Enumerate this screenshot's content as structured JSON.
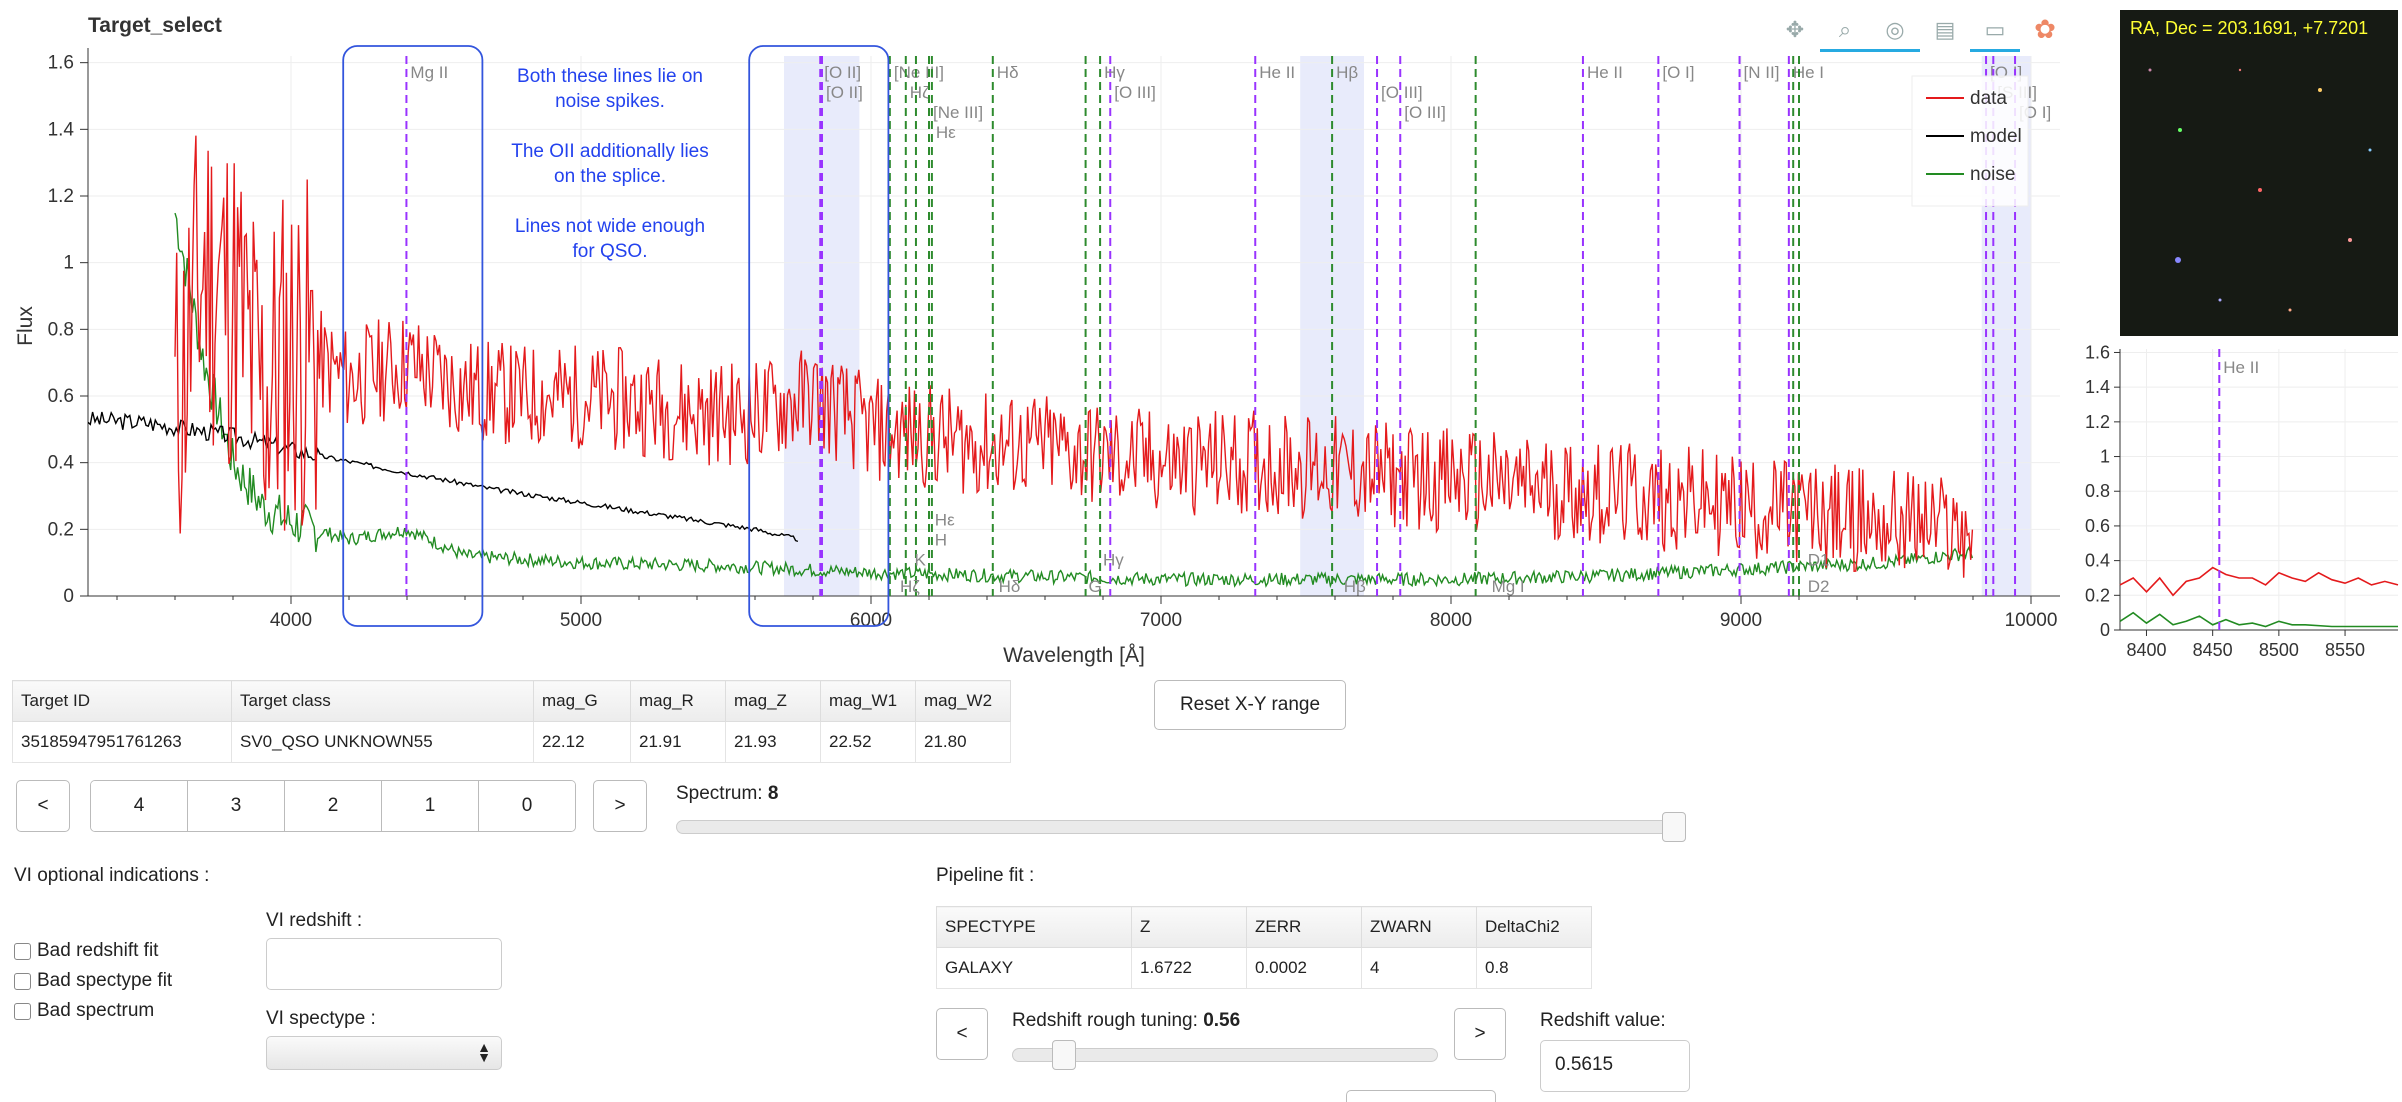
{
  "app": {
    "title": "Target_select"
  },
  "toolbar": {
    "icons": [
      "pan-icon",
      "box-zoom-icon",
      "wheel-zoom-icon",
      "save-icon",
      "hover-icon",
      "bokeh-logo-icon"
    ]
  },
  "main_chart": {
    "chart_data": {
      "type": "line",
      "xlabel": "Wavelength [Å]",
      "ylabel": "Flux",
      "xlim": [
        3300,
        10100
      ],
      "ylim": [
        0,
        1.62
      ],
      "x_ticks": [
        "4000",
        "5000",
        "6000",
        "7000",
        "8000",
        "9000",
        "10000"
      ],
      "y_ticks": [
        "0",
        "0.2",
        "0.4",
        "0.6",
        "0.8",
        "1",
        "1.2",
        "1.4",
        "1.6"
      ],
      "grid": true,
      "legend": {
        "placement": "top-right",
        "items": [
          {
            "name": "data",
            "color": "#e41a1c"
          },
          {
            "name": "model",
            "color": "#000000"
          },
          {
            "name": "noise",
            "color": "#228b22"
          }
        ]
      },
      "series": [
        {
          "name": "data",
          "color": "#e41a1c",
          "approx_points": [
            [
              3600,
              0.55
            ],
            [
              3700,
              1.0
            ],
            [
              3800,
              0.9
            ],
            [
              3900,
              0.6
            ],
            [
              4000,
              0.75
            ],
            [
              4200,
              0.65
            ],
            [
              4400,
              0.7
            ],
            [
              4600,
              0.62
            ],
            [
              4800,
              0.6
            ],
            [
              5000,
              0.6
            ],
            [
              5200,
              0.58
            ],
            [
              5400,
              0.55
            ],
            [
              5600,
              0.55
            ],
            [
              5800,
              0.6
            ],
            [
              6000,
              0.5
            ],
            [
              6200,
              0.48
            ],
            [
              6400,
              0.45
            ],
            [
              6600,
              0.45
            ],
            [
              6800,
              0.42
            ],
            [
              7000,
              0.4
            ],
            [
              7200,
              0.4
            ],
            [
              7400,
              0.4
            ],
            [
              7600,
              0.38
            ],
            [
              7800,
              0.36
            ],
            [
              8000,
              0.35
            ],
            [
              8200,
              0.33
            ],
            [
              8400,
              0.32
            ],
            [
              8600,
              0.3
            ],
            [
              8800,
              0.29
            ],
            [
              9000,
              0.27
            ],
            [
              9200,
              0.25
            ],
            [
              9400,
              0.23
            ],
            [
              9600,
              0.22
            ],
            [
              9800,
              0.2
            ]
          ]
        },
        {
          "name": "model",
          "color": "#000000",
          "approx_points": [
            [
              3300,
              0.53
            ],
            [
              3500,
              0.52
            ],
            [
              3800,
              0.48
            ],
            [
              4100,
              0.42
            ],
            [
              4400,
              0.37
            ],
            [
              4700,
              0.32
            ],
            [
              5000,
              0.28
            ],
            [
              5300,
              0.24
            ],
            [
              5600,
              0.2
            ],
            [
              5750,
              0.17
            ]
          ]
        },
        {
          "name": "noise",
          "color": "#228b22",
          "approx_points": [
            [
              3600,
              1.15
            ],
            [
              3700,
              0.7
            ],
            [
              3800,
              0.4
            ],
            [
              3900,
              0.27
            ],
            [
              4000,
              0.22
            ],
            [
              4200,
              0.17
            ],
            [
              4400,
              0.2
            ],
            [
              4600,
              0.12
            ],
            [
              5000,
              0.1
            ],
            [
              5500,
              0.09
            ],
            [
              6000,
              0.07
            ],
            [
              6500,
              0.06
            ],
            [
              7000,
              0.05
            ],
            [
              7500,
              0.05
            ],
            [
              8000,
              0.05
            ],
            [
              8500,
              0.06
            ],
            [
              9000,
              0.08
            ],
            [
              9500,
              0.1
            ],
            [
              9800,
              0.13
            ]
          ]
        }
      ],
      "vlines_purple": [
        {
          "x": 4398,
          "label": "Mg II",
          "label_pos": "top"
        },
        {
          "x": 5825,
          "label": "[O II]",
          "label_pos": "top"
        },
        {
          "x": 5831,
          "label": "[O II]",
          "label_pos": "top2"
        },
        {
          "x": 6825,
          "label": "[O III]",
          "label_pos": "top2"
        },
        {
          "x": 7325,
          "label": "He II",
          "label_pos": "top"
        },
        {
          "x": 7745,
          "label": "[O III]",
          "label_pos": "top2"
        },
        {
          "x": 7825,
          "label": "[O III]",
          "label_pos": "top3"
        },
        {
          "x": 8455,
          "label": "He II",
          "label_pos": "top"
        },
        {
          "x": 8715,
          "label": "[O I]",
          "label_pos": "top"
        },
        {
          "x": 8995,
          "label": "[N II]",
          "label_pos": "top"
        },
        {
          "x": 9165,
          "label": "He I",
          "label_pos": "top"
        },
        {
          "x": 9845,
          "label": "[O I]",
          "label_pos": "top"
        },
        {
          "x": 9870,
          "label": "[S III]",
          "label_pos": "top2"
        },
        {
          "x": 9945,
          "label": "[O I]",
          "label_pos": "top3"
        }
      ],
      "vlines_green": [
        {
          "x": 6065,
          "label": "[Ne III]",
          "label_pos": "top"
        },
        {
          "x": 6120,
          "label": "Hζ",
          "label_pos": "top2"
        },
        {
          "x": 6155,
          "label": "",
          "label_pos": "none"
        },
        {
          "x": 6200,
          "label": "[Ne III]",
          "label_pos": "top3"
        },
        {
          "x": 6210,
          "label": "Hε",
          "label_pos": "top4"
        },
        {
          "x": 6420,
          "label": "Hδ",
          "label_pos": "top"
        },
        {
          "x": 6740,
          "label": "",
          "label_pos": "none"
        },
        {
          "x": 6790,
          "label": "Hγ",
          "label_pos": "top"
        },
        {
          "x": 7590,
          "label": "Hβ",
          "label_pos": "top"
        },
        {
          "x": 8085,
          "label": "",
          "label_pos": "none"
        },
        {
          "x": 9180,
          "label": "",
          "label_pos": "none"
        },
        {
          "x": 9200,
          "label": "",
          "label_pos": "none"
        }
      ],
      "absorption_labels": [
        {
          "x": 6220,
          "y": 0.2,
          "text": "Hε"
        },
        {
          "x": 6220,
          "y": 0.14,
          "text": "H"
        },
        {
          "x": 6150,
          "y": 0.08,
          "text": "K"
        },
        {
          "x": 6800,
          "y": 0.08,
          "text": "Hγ"
        },
        {
          "x": 6100,
          "y": 0.0,
          "text": "Hζ"
        },
        {
          "x": 6440,
          "y": 0.0,
          "text": "Hδ"
        },
        {
          "x": 6750,
          "y": 0.0,
          "text": "G"
        },
        {
          "x": 7630,
          "y": 0.0,
          "text": "Hβ"
        },
        {
          "x": 8140,
          "y": 0.0,
          "text": "Mg I"
        },
        {
          "x": 9230,
          "y": 0.08,
          "text": "D1"
        },
        {
          "x": 9230,
          "y": 0.0,
          "text": "D2"
        }
      ],
      "shaded_regions": [
        [
          5700,
          5960
        ],
        [
          7480,
          7700
        ],
        [
          9830,
          10000
        ]
      ]
    },
    "annotation_boxes": [
      {
        "x0": 4180,
        "x1": 4660,
        "ylo": -0.09,
        "yhi": 1.65
      },
      {
        "x0": 5580,
        "x1": 6060,
        "ylo": -0.09,
        "yhi": 1.65
      }
    ],
    "annotation_text": [
      "Both these lines lie on",
      "noise spikes.",
      "The OII additionally lies",
      "on the splice.",
      "Lines not wide enough",
      "for QSO."
    ]
  },
  "thumbnail": {
    "label": "RA, Dec = 203.1691, +7.7201"
  },
  "zoom_chart": {
    "chart_data": {
      "type": "line",
      "xlim": [
        8380,
        8590
      ],
      "ylim": [
        0,
        1.62
      ],
      "x_ticks": [
        "8400",
        "8450",
        "8500",
        "8550"
      ],
      "y_ticks": [
        "0",
        "0.2",
        "0.4",
        "0.6",
        "0.8",
        "1",
        "1.2",
        "1.4",
        "1.6"
      ],
      "vline": {
        "x": 8455,
        "label": "He II"
      },
      "series": [
        {
          "name": "data",
          "color": "#e41a1c",
          "approx_points": [
            [
              8380,
              0.26
            ],
            [
              8390,
              0.3
            ],
            [
              8400,
              0.22
            ],
            [
              8410,
              0.3
            ],
            [
              8420,
              0.2
            ],
            [
              8430,
              0.28
            ],
            [
              8440,
              0.3
            ],
            [
              8450,
              0.36
            ],
            [
              8460,
              0.32
            ],
            [
              8470,
              0.3
            ],
            [
              8480,
              0.3
            ],
            [
              8490,
              0.26
            ],
            [
              8500,
              0.33
            ],
            [
              8510,
              0.3
            ],
            [
              8520,
              0.28
            ],
            [
              8530,
              0.33
            ],
            [
              8540,
              0.29
            ],
            [
              8550,
              0.27
            ],
            [
              8560,
              0.3
            ],
            [
              8570,
              0.26
            ],
            [
              8580,
              0.28
            ],
            [
              8590,
              0.26
            ]
          ]
        },
        {
          "name": "noise",
          "color": "#228b22",
          "approx_points": [
            [
              8380,
              0.05
            ],
            [
              8390,
              0.1
            ],
            [
              8400,
              0.04
            ],
            [
              8410,
              0.09
            ],
            [
              8420,
              0.03
            ],
            [
              8430,
              0.05
            ],
            [
              8440,
              0.08
            ],
            [
              8450,
              0.03
            ],
            [
              8460,
              0.06
            ],
            [
              8470,
              0.03
            ],
            [
              8480,
              0.04
            ],
            [
              8490,
              0.02
            ],
            [
              8500,
              0.05
            ],
            [
              8510,
              0.03
            ],
            [
              8520,
              0.03
            ],
            [
              8540,
              0.02
            ],
            [
              8560,
              0.02
            ],
            [
              8590,
              0.02
            ]
          ]
        }
      ]
    }
  },
  "target_table": {
    "headers": [
      "Target ID",
      "Target class",
      "mag_G",
      "mag_R",
      "mag_Z",
      "mag_W1",
      "mag_W2"
    ],
    "row": [
      "35185947951761263",
      "SV0_QSO UNKNOWN55",
      "22.12",
      "21.91",
      "21.93",
      "22.52",
      "21.80"
    ]
  },
  "reset_button": "Reset X-Y range",
  "spectrum_nav": {
    "prev": "<",
    "next": ">",
    "pages": [
      "4",
      "3",
      "2",
      "1",
      "0"
    ]
  },
  "spectrum_slider": {
    "label": "Spectrum:",
    "value": "8",
    "fraction": 1.0
  },
  "vi": {
    "section_title": "VI optional indications :",
    "checkboxes": [
      "Bad redshift fit",
      "Bad spectype fit",
      "Bad spectrum"
    ],
    "redshift_label": "VI redshift :",
    "redshift_value": "",
    "spectype_label": "VI spectype :",
    "spectype_value": ""
  },
  "pipeline": {
    "section_title": "Pipeline fit :",
    "headers": [
      "SPECTYPE",
      "Z",
      "ZERR",
      "ZWARN",
      "DeltaChi2"
    ],
    "row": [
      "GALAXY",
      "1.6722",
      "0.0002",
      "4",
      "0.8"
    ]
  },
  "redshift_tuning": {
    "prev": "<",
    "next": ">",
    "label": "Redshift rough tuning:",
    "value": "0.56",
    "fraction": 0.1
  },
  "redshift_value": {
    "label": "Redshift value:",
    "value": "0.5615"
  }
}
